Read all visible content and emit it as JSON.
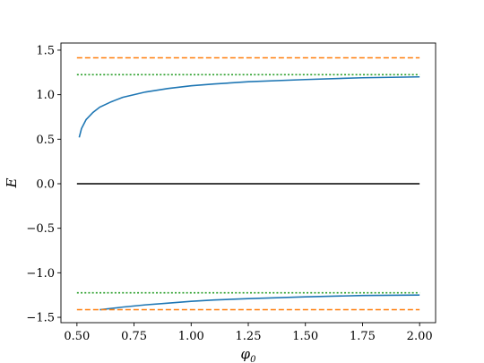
{
  "chart_data": {
    "type": "line",
    "title": "",
    "xlabel": "φ",
    "xlabel_subscript": "0",
    "ylabel": "E",
    "xlim": [
      0.43,
      2.07
    ],
    "ylim": [
      -1.56,
      1.58
    ],
    "x_ticks": [
      0.5,
      0.75,
      1.0,
      1.25,
      1.5,
      1.75,
      2.0
    ],
    "x_tick_labels": [
      "0.50",
      "0.75",
      "1.00",
      "1.25",
      "1.50",
      "1.75",
      "2.00"
    ],
    "y_ticks": [
      -1.5,
      -1.0,
      -0.5,
      0.0,
      0.5,
      1.0,
      1.5
    ],
    "y_tick_labels": [
      "−1.5",
      "−1.0",
      "−0.5",
      "0.0",
      "0.5",
      "1.0",
      "1.5"
    ],
    "grid": false,
    "series": [
      {
        "style": "solid",
        "color": "#1f77b4",
        "points": [
          [
            0.51,
            0.52
          ],
          [
            0.52,
            0.62
          ],
          [
            0.54,
            0.72
          ],
          [
            0.57,
            0.8
          ],
          [
            0.6,
            0.86
          ],
          [
            0.65,
            0.92
          ],
          [
            0.7,
            0.97
          ],
          [
            0.8,
            1.03
          ],
          [
            0.9,
            1.07
          ],
          [
            1.0,
            1.1
          ],
          [
            1.1,
            1.12
          ],
          [
            1.25,
            1.145
          ],
          [
            1.5,
            1.17
          ],
          [
            1.75,
            1.19
          ],
          [
            2.0,
            1.2
          ]
        ]
      },
      {
        "style": "solid",
        "color": "#1f77b4",
        "points": [
          [
            0.6,
            -1.415
          ],
          [
            0.7,
            -1.385
          ],
          [
            0.8,
            -1.36
          ],
          [
            0.9,
            -1.34
          ],
          [
            1.0,
            -1.32
          ],
          [
            1.1,
            -1.305
          ],
          [
            1.25,
            -1.29
          ],
          [
            1.5,
            -1.27
          ],
          [
            1.75,
            -1.255
          ],
          [
            2.0,
            -1.25
          ]
        ]
      },
      {
        "style": "solid",
        "color": "#000000",
        "points": [
          [
            0.5,
            0.0
          ],
          [
            2.0,
            0.0
          ]
        ]
      },
      {
        "style": "dashed",
        "color": "#ff7f0e",
        "points": [
          [
            0.5,
            1.414
          ],
          [
            2.0,
            1.414
          ]
        ]
      },
      {
        "style": "dashed",
        "color": "#ff7f0e",
        "points": [
          [
            0.5,
            -1.414
          ],
          [
            2.0,
            -1.414
          ]
        ]
      },
      {
        "style": "dotted",
        "color": "#2ca02c",
        "points": [
          [
            0.5,
            1.225
          ],
          [
            2.0,
            1.225
          ]
        ]
      },
      {
        "style": "dotted",
        "color": "#2ca02c",
        "points": [
          [
            0.5,
            -1.225
          ],
          [
            2.0,
            -1.225
          ]
        ]
      }
    ]
  }
}
